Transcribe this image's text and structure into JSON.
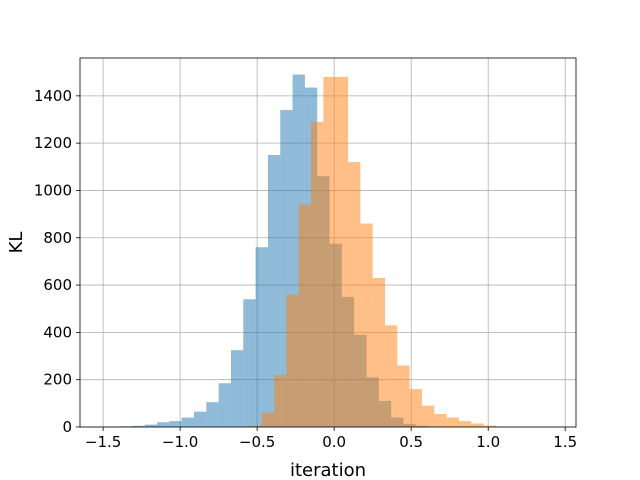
{
  "chart_data": {
    "type": "histogram",
    "title": "",
    "xlabel": "iteration",
    "ylabel": "KL",
    "xlim": [
      -1.65,
      1.57
    ],
    "ylim": [
      0,
      1560
    ],
    "xticks": [
      -1.5,
      -1.0,
      -0.5,
      0.0,
      0.5,
      1.0,
      1.5
    ],
    "xtick_labels": [
      "−1.5",
      "−1.0",
      "−0.5",
      "0.0",
      "0.5",
      "1.0",
      "1.5"
    ],
    "yticks": [
      0,
      200,
      400,
      600,
      800,
      1000,
      1200,
      1400
    ],
    "ytick_labels": [
      "0",
      "200",
      "400",
      "600",
      "800",
      "1000",
      "1200",
      "1400"
    ],
    "grid": true,
    "legend": "none",
    "series": [
      {
        "color": "#1f77b4",
        "alpha": 0.5,
        "bin_start": -1.55,
        "bin_width": 0.08,
        "values": [
          1,
          2,
          3,
          5,
          10,
          20,
          25,
          40,
          65,
          105,
          185,
          325,
          540,
          760,
          1150,
          1340,
          1490,
          1435,
          1060,
          775,
          550,
          390,
          210,
          110,
          40,
          12,
          5,
          2
        ]
      },
      {
        "color": "#ff7f0e",
        "alpha": 0.5,
        "bin_start": -0.55,
        "bin_width": 0.08,
        "values": [
          5,
          60,
          220,
          560,
          940,
          1290,
          1480,
          1480,
          1120,
          860,
          630,
          430,
          260,
          160,
          90,
          55,
          40,
          25,
          15,
          6,
          2
        ]
      }
    ]
  }
}
